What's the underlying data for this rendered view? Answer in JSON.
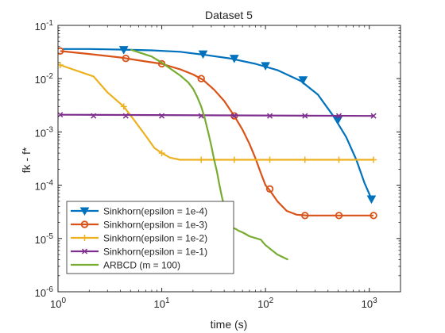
{
  "chart_data": {
    "type": "line",
    "title": "Dataset 5",
    "xlabel": "time (s)",
    "ylabel": "fk - f*",
    "xscale": "log",
    "yscale": "log",
    "xlim": [
      1,
      2000
    ],
    "ylim": [
      1e-06,
      0.1
    ],
    "grid": false,
    "legend_position": "bottom-left",
    "x_ticks": [
      {
        "value": 1,
        "base": "10",
        "exp": "0"
      },
      {
        "value": 10,
        "base": "10",
        "exp": "1"
      },
      {
        "value": 100,
        "base": "10",
        "exp": "2"
      },
      {
        "value": 1000,
        "base": "10",
        "exp": "3"
      }
    ],
    "y_ticks": [
      {
        "value": 1e-06,
        "base": "10",
        "exp": "-6"
      },
      {
        "value": 1e-05,
        "base": "10",
        "exp": "-5"
      },
      {
        "value": 0.0001,
        "base": "10",
        "exp": "-4"
      },
      {
        "value": 0.001,
        "base": "10",
        "exp": "-3"
      },
      {
        "value": 0.01,
        "base": "10",
        "exp": "-2"
      },
      {
        "value": 0.1,
        "base": "10",
        "exp": "-1"
      }
    ],
    "series": [
      {
        "name": "Sinkhorn(epsilon = 1e-4)",
        "color": "#0072bd",
        "marker": "triangle-down",
        "x": [
          1.1,
          2,
          4.3,
          8,
          15,
          26,
          45,
          80,
          130,
          220,
          320,
          450,
          600,
          750,
          900,
          1050
        ],
        "y": [
          0.036,
          0.036,
          0.035,
          0.034,
          0.032,
          0.028,
          0.024,
          0.019,
          0.0145,
          0.009,
          0.005,
          0.002,
          0.0008,
          0.0003,
          0.00011,
          5.5e-05
        ],
        "marker_x": [
          4.3,
          25,
          50,
          100,
          230,
          500,
          1050
        ],
        "marker_y": [
          0.035,
          0.029,
          0.024,
          0.0175,
          0.0095,
          0.0017,
          5.5e-05
        ]
      },
      {
        "name": "Sinkhorn(epsilon = 1e-3)",
        "color": "#d95319",
        "marker": "circle",
        "x": [
          1.05,
          2,
          4,
          7,
          10,
          15,
          20,
          25,
          32,
          40,
          50,
          60,
          70,
          80,
          90,
          100,
          110,
          130,
          160,
          200,
          250,
          500,
          1100
        ],
        "y": [
          0.033,
          0.029,
          0.025,
          0.021,
          0.019,
          0.015,
          0.012,
          0.0095,
          0.0062,
          0.0038,
          0.002,
          0.0011,
          0.0006,
          0.00032,
          0.00017,
          0.0001,
          8e-05,
          5e-05,
          3.3e-05,
          2.8e-05,
          2.7e-05,
          2.7e-05,
          2.7e-05
        ],
        "marker_x": [
          1.05,
          4.5,
          10,
          24,
          50,
          110,
          240,
          510,
          1100
        ],
        "marker_y": [
          0.033,
          0.024,
          0.019,
          0.01,
          0.002,
          8.5e-05,
          2.7e-05,
          2.7e-05,
          2.7e-05
        ]
      },
      {
        "name": "Sinkhorn(epsilon = 1e-2)",
        "color": "#edb120",
        "marker": "plus",
        "x": [
          1.05,
          2.2,
          3,
          4.3,
          5.5,
          7,
          8.5,
          10,
          12,
          15,
          20,
          50,
          100,
          1100
        ],
        "y": [
          0.018,
          0.011,
          0.0055,
          0.003,
          0.0016,
          0.00085,
          0.0005,
          0.0004,
          0.00033,
          0.0003,
          0.0003,
          0.0003,
          0.0003,
          0.0003
        ],
        "marker_x": [
          1.05,
          4.3,
          10,
          24,
          50,
          110,
          240,
          510,
          1100
        ],
        "marker_y": [
          0.018,
          0.003,
          0.0004,
          0.0003,
          0.0003,
          0.0003,
          0.0003,
          0.0003,
          0.0003
        ]
      },
      {
        "name": "Sinkhorn(epsilon = 1e-1)",
        "color": "#7e2f8e",
        "marker": "x",
        "x": [
          1.05,
          1100
        ],
        "y": [
          0.0021,
          0.002
        ],
        "marker_x": [
          1.05,
          2.2,
          4.5,
          10,
          24,
          50,
          110,
          240,
          510,
          1100
        ],
        "marker_y": [
          0.0021,
          0.002,
          0.002,
          0.002,
          0.002,
          0.002,
          0.002,
          0.002,
          0.002,
          0.002
        ]
      },
      {
        "name": "ARBCD (m = 100)",
        "color": "#77ac30",
        "marker": "none",
        "x": [
          5,
          8,
          10,
          15,
          18,
          20,
          22,
          24,
          26,
          28,
          30,
          32,
          34,
          36,
          38,
          40,
          42,
          44,
          46,
          48,
          52,
          55,
          60,
          65,
          70,
          90,
          100,
          130,
          165
        ],
        "y": [
          0.035,
          0.026,
          0.02,
          0.0115,
          0.0085,
          0.0065,
          0.0045,
          0.003,
          0.0018,
          0.001,
          0.00055,
          0.0003,
          0.00018,
          0.0001,
          6e-05,
          4e-05,
          2.5e-05,
          2e-05,
          1.7e-05,
          1.6e-05,
          1.5e-05,
          1.4e-05,
          1.3e-05,
          1.2e-05,
          1.1e-05,
          9.5e-06,
          7.5e-06,
          5e-06,
          4e-06
        ]
      }
    ]
  }
}
